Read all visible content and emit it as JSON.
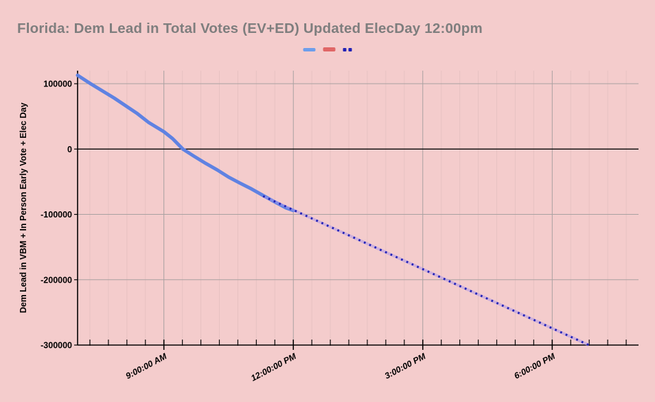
{
  "title": "Florida: Dem Lead in Total Votes (EV+ED) Updated ElecDay 12:00pm",
  "colors": {
    "background": "#f4cccc",
    "title_text": "#7e7e7e",
    "axis": "#000000",
    "major_gridline": "#a8a0a0",
    "minor_gridline": "#e7c2c2",
    "solid_series": "#5f82e2",
    "legend_blue": "#6d9eeb",
    "red_series": "#e06666",
    "projection_series": "#2222b5",
    "projection_halo": "rgba(167,148,235,0.5)"
  },
  "legend": {
    "items": [
      {
        "swatch": "solid-blue-dash",
        "style": "solid",
        "color": "#6d9eeb"
      },
      {
        "swatch": "solid-red-dash",
        "style": "solid",
        "color": "#e06666"
      },
      {
        "swatch": "navy-dotted",
        "style": "dots",
        "color": "#2222b5"
      }
    ]
  },
  "chart_data": {
    "type": "line",
    "title": "Florida: Dem Lead in Total Votes (EV+ED) Updated ElecDay 12:00pm",
    "xlabel": "",
    "ylabel": "Dem Lead in VBM + In Person Early Vote + Elec Day",
    "ylim": [
      -300000,
      120000
    ],
    "xlim_hours": [
      7.0,
      20.0
    ],
    "grid": "on",
    "legend_position": "top-center",
    "yticks": [
      {
        "value": 100000,
        "label": "100000"
      },
      {
        "value": 0,
        "label": "0"
      },
      {
        "value": -100000,
        "label": "-100000"
      },
      {
        "value": -200000,
        "label": "-200000"
      },
      {
        "value": -300000,
        "label": "-300000"
      }
    ],
    "xticks_major": [
      {
        "hour": 9,
        "label": "9:00:00 AM"
      },
      {
        "hour": 12,
        "label": "12:00:00 PM"
      },
      {
        "hour": 15,
        "label": "3:00:00 PM"
      },
      {
        "hour": 18,
        "label": "6:00:00 PM"
      }
    ],
    "xticks_minor_step_hours": 0.42857,
    "series": [
      {
        "name": "solid-blue-actual",
        "style": "solid",
        "color": "#5f82e2",
        "points": [
          [
            7.0,
            113000
          ],
          [
            7.3,
            100000
          ],
          [
            7.85,
            78000
          ],
          [
            8.37,
            55000
          ],
          [
            8.64,
            41000
          ],
          [
            9.0,
            26500
          ],
          [
            9.2,
            16000
          ],
          [
            9.44,
            0
          ],
          [
            9.7,
            -11000
          ],
          [
            9.97,
            -22000
          ],
          [
            10.24,
            -32000
          ],
          [
            10.5,
            -43000
          ],
          [
            10.76,
            -52000
          ],
          [
            11.03,
            -61000
          ],
          [
            11.3,
            -71000
          ],
          [
            11.56,
            -80500
          ],
          [
            11.83,
            -90000
          ],
          [
            12.0,
            -94000
          ]
        ]
      },
      {
        "name": "red-series-no-visible-data",
        "style": "solid",
        "color": "#e06666",
        "points": []
      },
      {
        "name": "navy-dotted-projection",
        "style": "dotted",
        "color": "#2222b5",
        "points": [
          [
            11.3,
            -72000
          ],
          [
            18.85,
            -300000
          ]
        ]
      }
    ]
  }
}
